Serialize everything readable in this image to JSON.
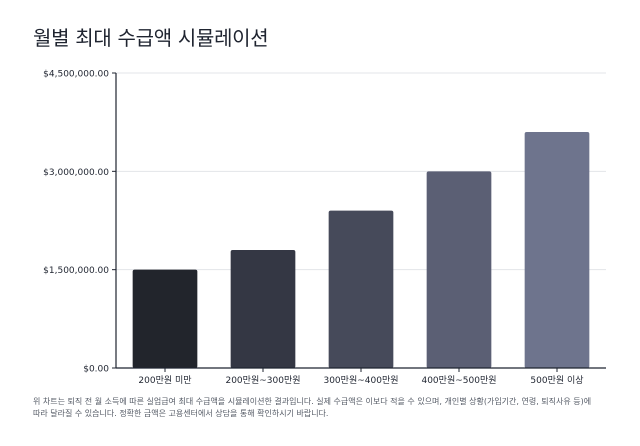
{
  "title": "월별 최대 수급액 시뮬레이션",
  "chart_data": {
    "type": "bar",
    "categories": [
      "200만원 미만",
      "200만원~300만원",
      "300만원~400만원",
      "400만원~500만원",
      "500만원 이상"
    ],
    "values": [
      1500000,
      1800000,
      2400000,
      3000000,
      3600000
    ],
    "ylim": [
      0,
      4500000
    ],
    "yticks": [
      {
        "value": 0,
        "label": "$0.00"
      },
      {
        "value": 1500000,
        "label": "$1,500,000.00"
      },
      {
        "value": 3000000,
        "label": "$3,000,000.00"
      },
      {
        "value": 4500000,
        "label": "$4,500,000.00"
      }
    ],
    "grid": true,
    "legend": "none",
    "colors": [
      "#22252c",
      "#343744",
      "#464a5a",
      "#5b5f74",
      "#6e748d"
    ]
  },
  "note": {
    "line1": "위 차트는 퇴직 전 월 소득에 따른 실업급여 최대 수급액을 시뮬레이션한 결과입니다. 실제 수급액은 이보다 적을 수 있으며, 개인별 상황(가입기간, 연령, 퇴직사유 등)에",
    "line2": "따라 달라질 수 있습니다. 정확한 금액은 고용센터에서 상담을 통해 확인하시기 바랍니다."
  }
}
